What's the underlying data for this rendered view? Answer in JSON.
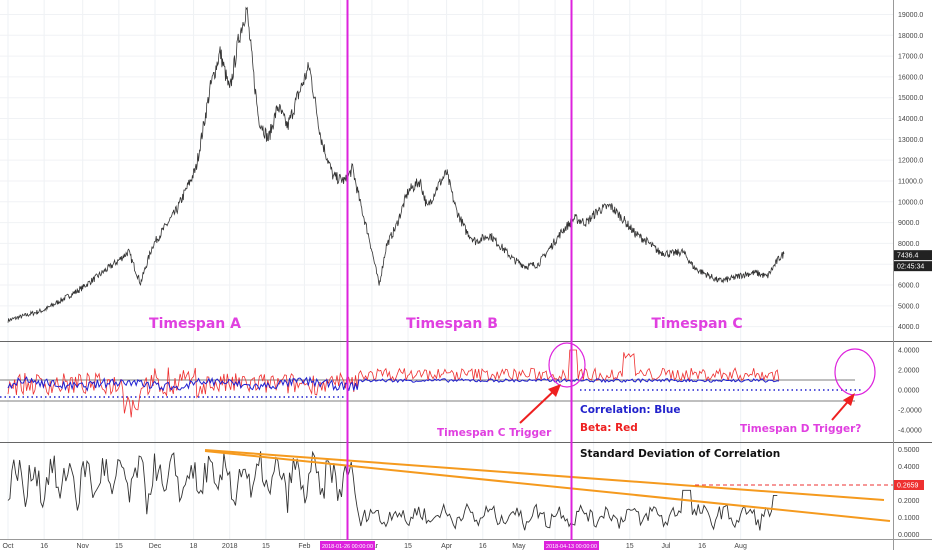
{
  "chart_data": [
    {
      "type": "line",
      "name": "price",
      "ylim": [
        3600,
        19600
      ],
      "yticks": [
        "19000.0",
        "18000.0",
        "17000.0",
        "16000.0",
        "15000.0",
        "14000.0",
        "13000.0",
        "12000.0",
        "11000.0",
        "10000.0",
        "9000.0",
        "8000.0",
        "7000.0",
        "6000.0",
        "5000.0",
        "4000.0"
      ],
      "ytick_values": [
        19000,
        18000,
        17000,
        16000,
        15000,
        14000,
        13000,
        12000,
        11000,
        10000,
        9000,
        8000,
        7000,
        6000,
        5000,
        4000
      ],
      "last_price": "7436.4",
      "countdown": "02:45:34",
      "anchors": [
        {
          "d": 0,
          "v": 4300
        },
        {
          "d": 15,
          "v": 4800
        },
        {
          "d": 30,
          "v": 5800
        },
        {
          "d": 45,
          "v": 7100
        },
        {
          "d": 50,
          "v": 7600
        },
        {
          "d": 55,
          "v": 6100
        },
        {
          "d": 60,
          "v": 7900
        },
        {
          "d": 70,
          "v": 9600
        },
        {
          "d": 78,
          "v": 11600
        },
        {
          "d": 84,
          "v": 15500
        },
        {
          "d": 88,
          "v": 17200
        },
        {
          "d": 92,
          "v": 15300
        },
        {
          "d": 96,
          "v": 18000
        },
        {
          "d": 99,
          "v": 19300
        },
        {
          "d": 102,
          "v": 16000
        },
        {
          "d": 104,
          "v": 14000
        },
        {
          "d": 108,
          "v": 13000
        },
        {
          "d": 112,
          "v": 14600
        },
        {
          "d": 116,
          "v": 13600
        },
        {
          "d": 120,
          "v": 15000
        },
        {
          "d": 125,
          "v": 16500
        },
        {
          "d": 130,
          "v": 13000
        },
        {
          "d": 135,
          "v": 11200
        },
        {
          "d": 140,
          "v": 11000
        },
        {
          "d": 143,
          "v": 11600
        },
        {
          "d": 146,
          "v": 10000
        },
        {
          "d": 150,
          "v": 8200
        },
        {
          "d": 154,
          "v": 6000
        },
        {
          "d": 157,
          "v": 7900
        },
        {
          "d": 161,
          "v": 8800
        },
        {
          "d": 166,
          "v": 10500
        },
        {
          "d": 171,
          "v": 11000
        },
        {
          "d": 174,
          "v": 9700
        },
        {
          "d": 178,
          "v": 10700
        },
        {
          "d": 182,
          "v": 11400
        },
        {
          "d": 186,
          "v": 9600
        },
        {
          "d": 190,
          "v": 8600
        },
        {
          "d": 194,
          "v": 8100
        },
        {
          "d": 200,
          "v": 8400
        },
        {
          "d": 205,
          "v": 7800
        },
        {
          "d": 210,
          "v": 7200
        },
        {
          "d": 215,
          "v": 6900
        },
        {
          "d": 220,
          "v": 7000
        },
        {
          "d": 225,
          "v": 7800
        },
        {
          "d": 230,
          "v": 8600
        },
        {
          "d": 235,
          "v": 9200
        },
        {
          "d": 240,
          "v": 9000
        },
        {
          "d": 245,
          "v": 9600
        },
        {
          "d": 250,
          "v": 9800
        },
        {
          "d": 255,
          "v": 9200
        },
        {
          "d": 260,
          "v": 8500
        },
        {
          "d": 265,
          "v": 8100
        },
        {
          "d": 270,
          "v": 7600
        },
        {
          "d": 275,
          "v": 7500
        },
        {
          "d": 280,
          "v": 7600
        },
        {
          "d": 285,
          "v": 6800
        },
        {
          "d": 290,
          "v": 6500
        },
        {
          "d": 295,
          "v": 6200
        },
        {
          "d": 300,
          "v": 6300
        },
        {
          "d": 305,
          "v": 6500
        },
        {
          "d": 310,
          "v": 6600
        },
        {
          "d": 315,
          "v": 6400
        },
        {
          "d": 320,
          "v": 7300
        },
        {
          "d": 322,
          "v": 7500
        }
      ]
    },
    {
      "type": "line",
      "name": "correlation-beta",
      "ylim": [
        -4.5,
        4.5
      ],
      "yticks": [
        "4.0000",
        "2.0000",
        "0.0000",
        "-2.0000",
        "-4.0000"
      ],
      "ytick_values": [
        4,
        2,
        0,
        -2,
        -4
      ]
    },
    {
      "type": "line",
      "name": "stdev",
      "ylim": [
        -0.02,
        0.52
      ],
      "yticks": [
        "0.5000",
        "0.4000",
        "0.3000",
        "0.2000",
        "0.1000",
        "0.0000"
      ],
      "ytick_values": [
        0.5,
        0.4,
        0.3,
        0.2,
        0.1,
        0.0
      ],
      "last_value": "0.2659",
      "xticks": [
        "Oct",
        "16",
        "Nov",
        "15",
        "Dec",
        "18",
        "2018",
        "15",
        "Feb",
        "15",
        "Mar",
        "15",
        "Apr",
        "16",
        "May",
        "15",
        "Jun",
        "15",
        "Jul",
        "16",
        "Aug"
      ],
      "xtick_days": [
        0,
        15,
        31,
        46,
        61,
        77,
        92,
        107,
        123,
        138,
        151,
        166,
        182,
        197,
        212,
        227,
        243,
        258,
        273,
        288,
        304
      ]
    }
  ],
  "labels": {
    "span_a": "Timespan A",
    "span_b": "Timespan B",
    "span_c": "Timespan C",
    "trigger_c": "Timespan C Trigger",
    "trigger_d": "Timespan D Trigger?",
    "corr_legend": "Correlation: Blue",
    "beta_legend": "Beta: Red",
    "stdev_title": "Standard Deviation of Correlation",
    "marker1": "2018-01-26 00:00:00",
    "marker2": "2018-04-13 00:00:00"
  },
  "colors": {
    "price": "#333333",
    "correlation": "#2020d0",
    "beta": "#ee3030",
    "marker": "#dd22dd",
    "trend": "#f59a1e",
    "last_price_bg": "#222222",
    "stdev_value_bg": "#ee3030"
  }
}
